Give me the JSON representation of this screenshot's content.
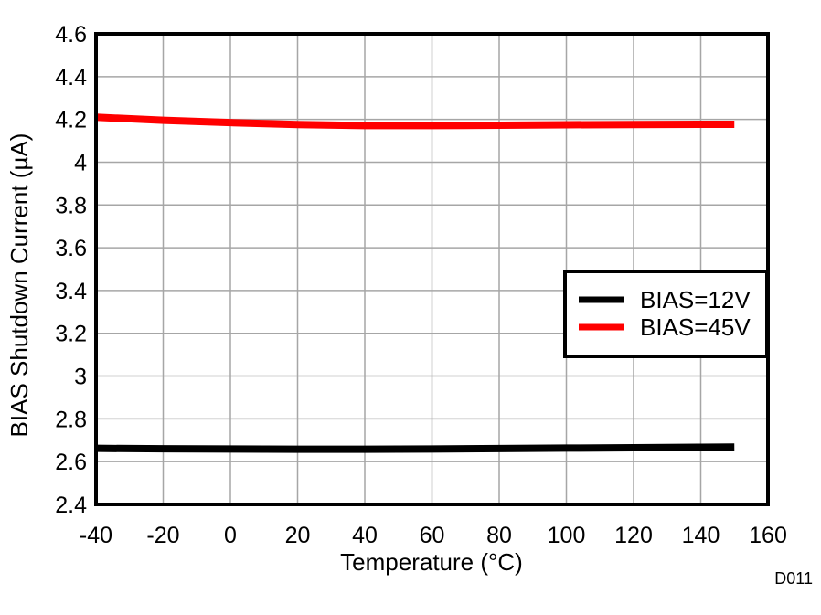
{
  "figure": {
    "background": "#ffffff"
  },
  "chart_data": {
    "type": "line",
    "title": "",
    "xlabel": "Temperature (°C)",
    "ylabel": "BIAS Shutdown Current (µA)",
    "xlim": [
      -40,
      160
    ],
    "ylim": [
      2.4,
      4.6
    ],
    "grid": true,
    "grid_color": "#a6a6a6",
    "axis_color": "#000000",
    "xticks": [
      -40,
      -20,
      0,
      20,
      40,
      60,
      80,
      100,
      120,
      140,
      160
    ],
    "xtick_labels": [
      "-40",
      "-20",
      "0",
      "20",
      "40",
      "60",
      "80",
      "100",
      "120",
      "140",
      "160"
    ],
    "yticks": [
      2.4,
      2.6,
      2.8,
      3.0,
      3.2,
      3.4,
      3.6,
      3.8,
      4.0,
      4.2,
      4.4,
      4.6
    ],
    "ytick_labels": [
      "2.4",
      "2.6",
      "2.8",
      "3",
      "3.2",
      "3.4",
      "3.6",
      "3.8",
      "4",
      "4.2",
      "4.4",
      "4.6"
    ],
    "x": [
      -40,
      -20,
      0,
      20,
      40,
      60,
      80,
      100,
      120,
      140,
      150
    ],
    "series": [
      {
        "name": "BIAS=12V",
        "color": "#000000",
        "values": [
          2.662,
          2.66,
          2.659,
          2.658,
          2.658,
          2.659,
          2.661,
          2.663,
          2.665,
          2.667,
          2.668
        ]
      },
      {
        "name": "BIAS=45V",
        "color": "#ff0000",
        "values": [
          4.21,
          4.196,
          4.185,
          4.176,
          4.171,
          4.171,
          4.173,
          4.175,
          4.176,
          4.177,
          4.177
        ]
      }
    ],
    "legend": {
      "position": "middle-right",
      "entries": [
        {
          "label": "BIAS=12V",
          "color": "#000000"
        },
        {
          "label": "BIAS=45V",
          "color": "#ff0000"
        }
      ]
    },
    "watermark": "D011",
    "watermark_color": "#a6a6a6"
  }
}
